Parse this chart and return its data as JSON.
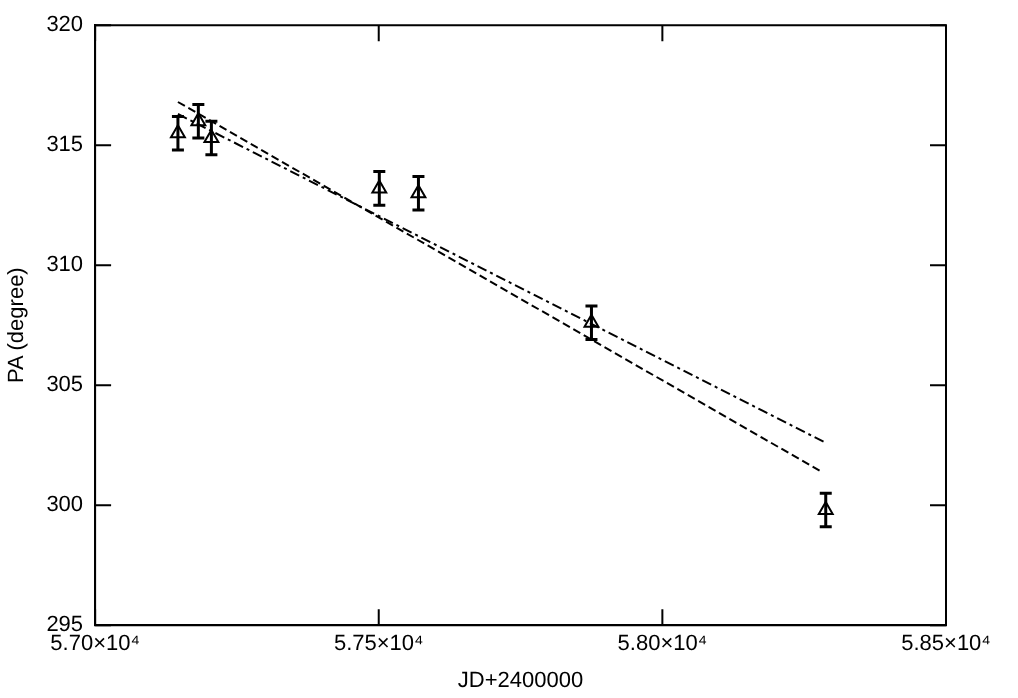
{
  "chart_data": {
    "type": "scatter",
    "xlabel": "JD+2400000",
    "ylabel": "PA (degree)",
    "marker": "triangle",
    "grid": false,
    "legend": false,
    "xlim": [
      57000,
      58500
    ],
    "xticks": [
      {
        "value": 57000,
        "label": "5.70×10⁴"
      },
      {
        "value": 57500,
        "label": "5.75×10⁴"
      },
      {
        "value": 58000,
        "label": "5.80×10⁴"
      },
      {
        "value": 58500,
        "label": "5.85×10⁴"
      }
    ],
    "ylim": [
      295,
      320
    ],
    "yticks": [
      295,
      300,
      305,
      310,
      315,
      320
    ],
    "series": [
      {
        "color": "#000000",
        "x": [
          57146,
          57182,
          57205,
          57501,
          57570,
          57875,
          58288
        ],
        "values": [
          315.5,
          316.0,
          315.3,
          313.2,
          313.0,
          307.6,
          299.8
        ],
        "errors": [
          0.7,
          0.7,
          0.7,
          0.7,
          0.7,
          0.7,
          0.7
        ]
      },
      {
        "type": "line",
        "color": "#000000",
        "line_style": "dashed",
        "marker": "none",
        "x": [
          57146,
          58280
        ],
        "values": [
          316.8,
          301.4
        ]
      },
      {
        "type": "line",
        "color": "#000000",
        "line_style": "dotted",
        "marker": "none",
        "x": [
          57146,
          58288
        ],
        "values": [
          316.3,
          302.6
        ]
      }
    ]
  }
}
